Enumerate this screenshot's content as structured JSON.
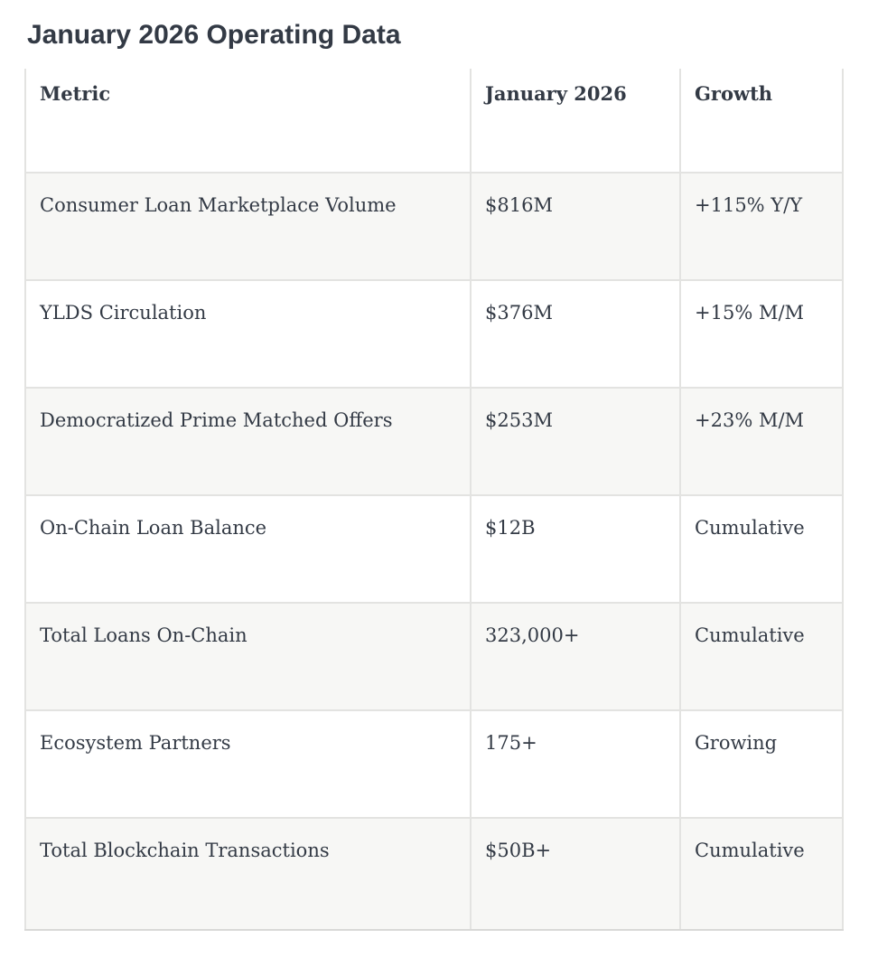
{
  "page": {
    "title": "January 2026 Operating Data"
  },
  "table": {
    "headers": [
      "Metric",
      "January 2026",
      "Growth"
    ],
    "rows": [
      [
        "Consumer Loan Marketplace Volume",
        "$816M",
        "+115% Y/Y"
      ],
      [
        "YLDS Circulation",
        "$376M",
        "+15% M/M"
      ],
      [
        "Democratized Prime Matched Offers",
        "$253M",
        "+23% M/M"
      ],
      [
        "On-Chain Loan Balance",
        "$12B",
        "Cumulative"
      ],
      [
        "Total Loans On-Chain",
        "323,000+",
        "Cumulative"
      ],
      [
        "Ecosystem Partners",
        "175+",
        "Growing"
      ],
      [
        "Total Blockchain Transactions",
        "$50B+",
        "Cumulative"
      ]
    ],
    "colors": {
      "text": "#333a45",
      "alt_row_bg": "#f7f7f5",
      "border": "#e3e3e1"
    }
  }
}
